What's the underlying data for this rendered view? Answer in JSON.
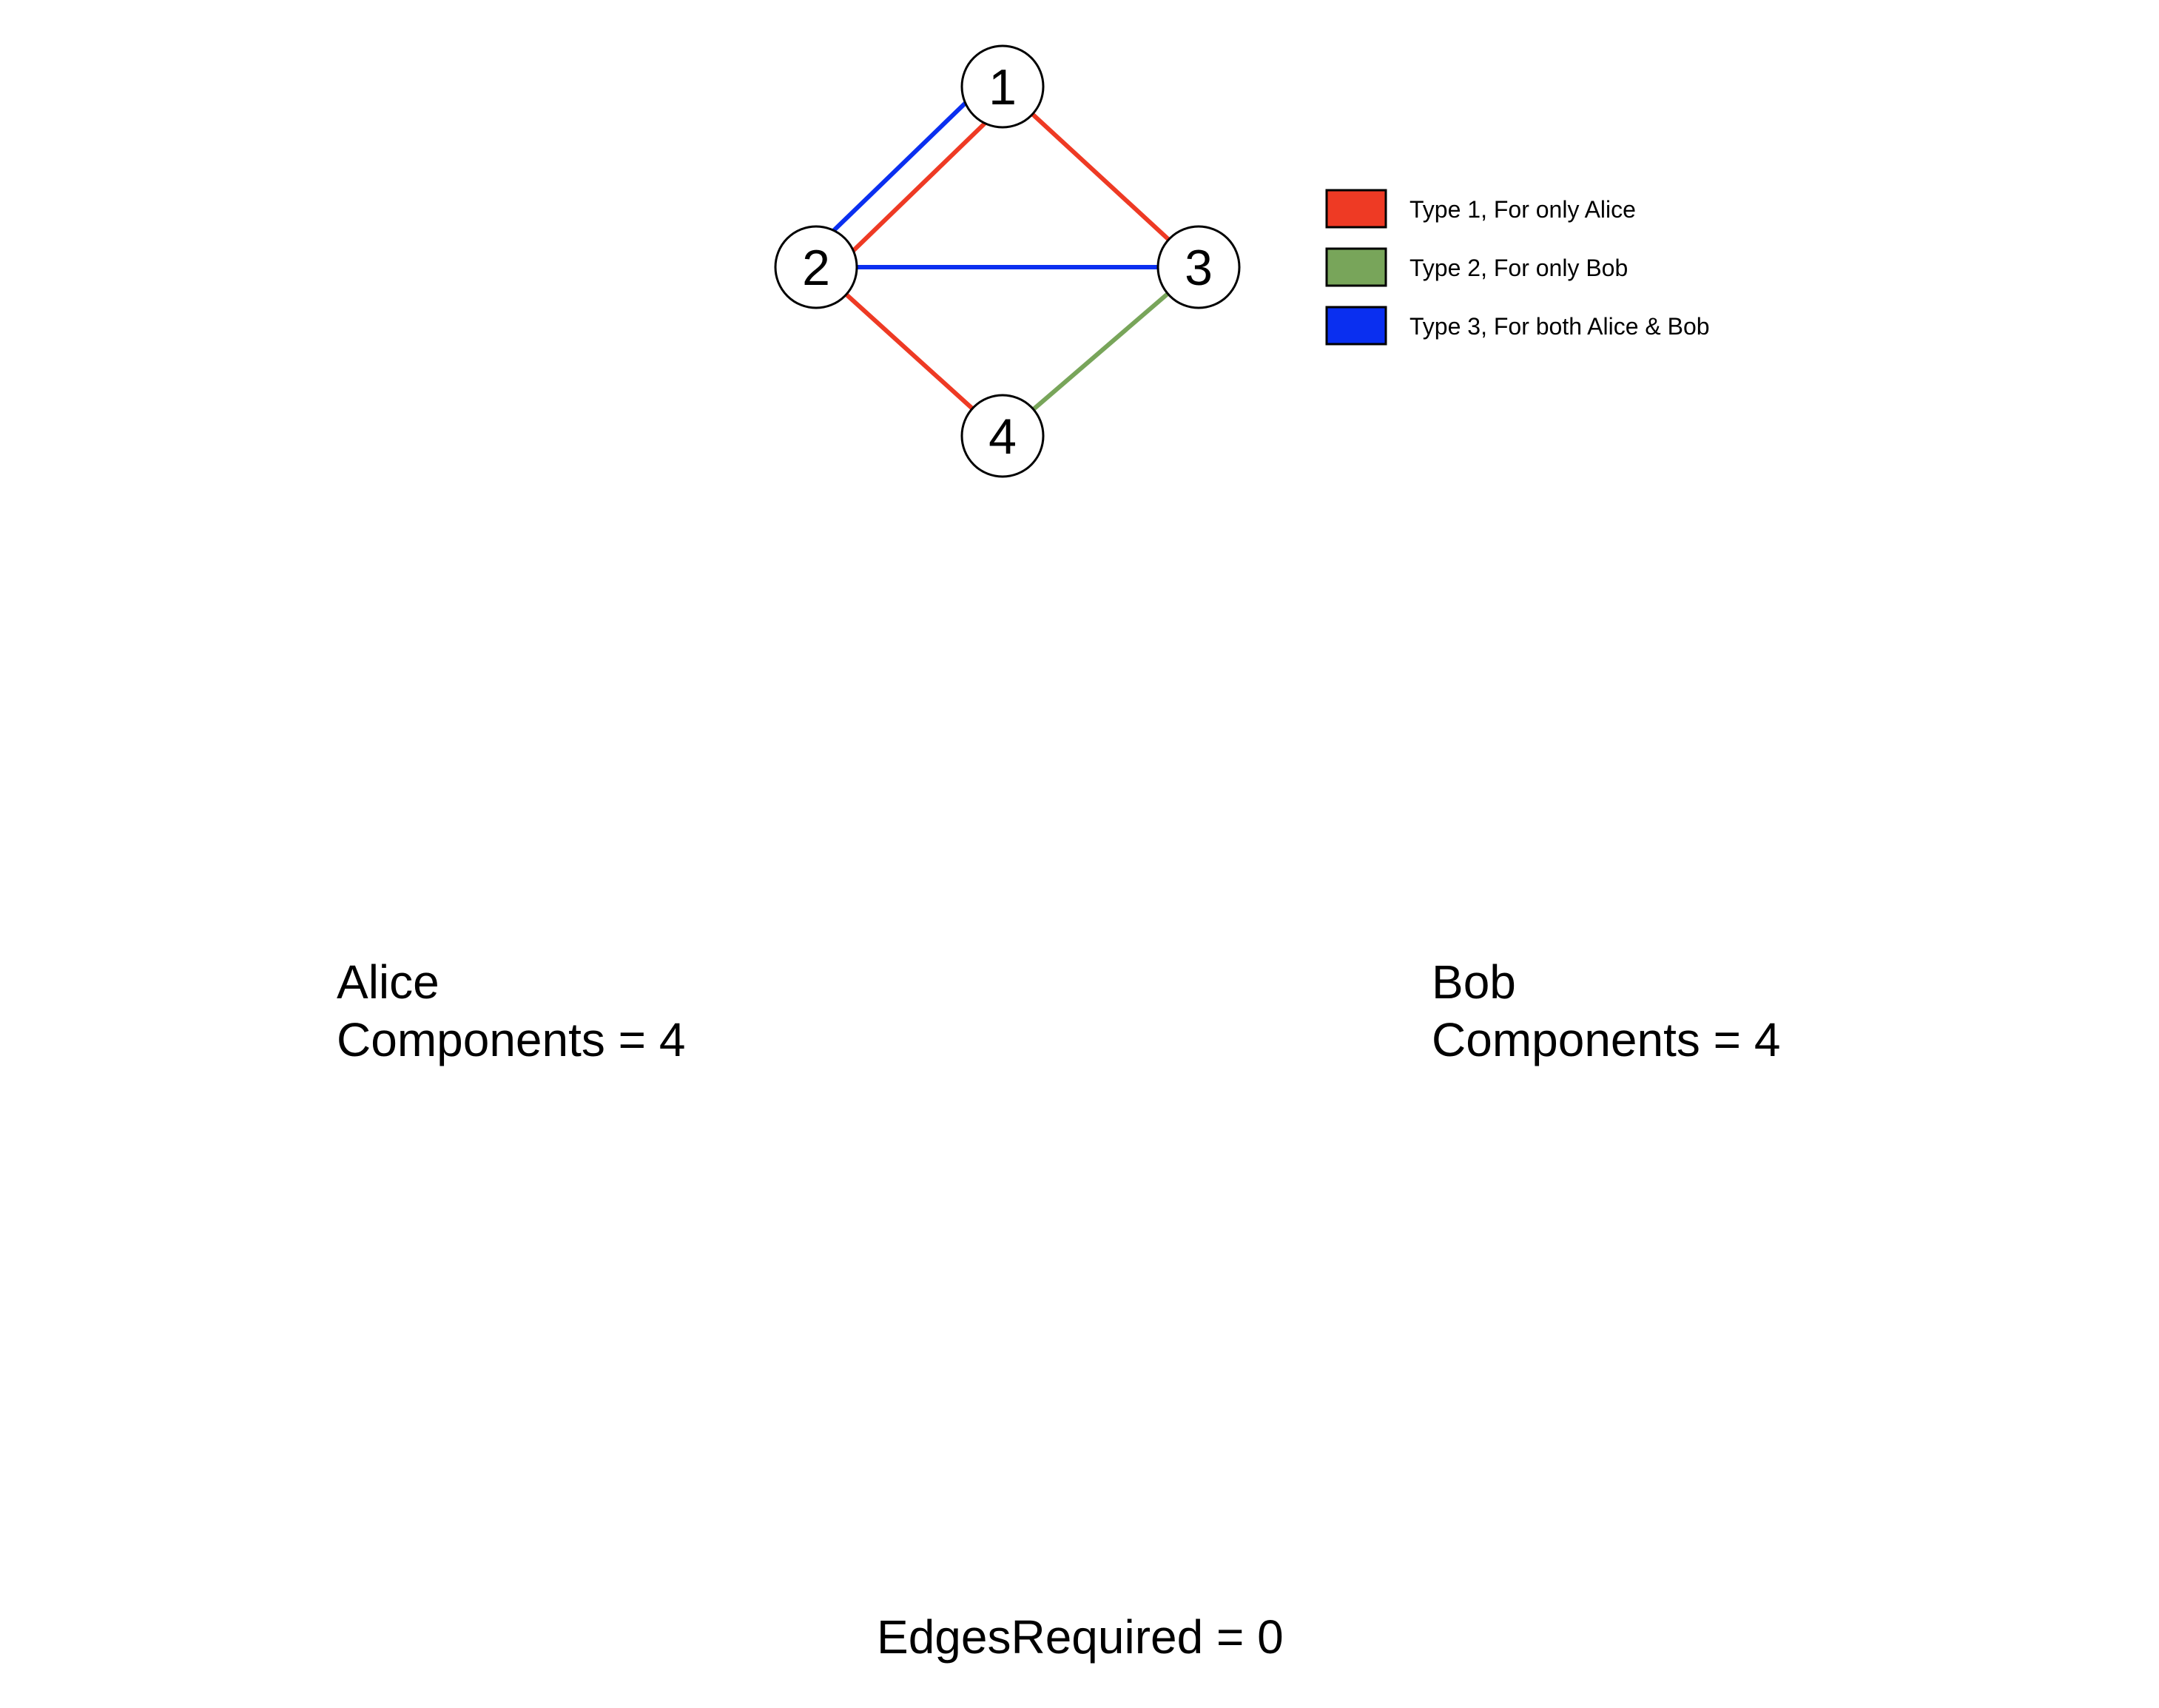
{
  "colors": {
    "type1": "#EE3A24",
    "type2": "#78A55A",
    "type3": "#0A2FF0"
  },
  "graph": {
    "nodes": [
      {
        "id": "1",
        "label": "1"
      },
      {
        "id": "2",
        "label": "2"
      },
      {
        "id": "3",
        "label": "3"
      },
      {
        "id": "4",
        "label": "4"
      }
    ],
    "edges": [
      {
        "from": "1",
        "to": "2",
        "type": 1
      },
      {
        "from": "1",
        "to": "2",
        "type": 3
      },
      {
        "from": "1",
        "to": "3",
        "type": 1
      },
      {
        "from": "2",
        "to": "3",
        "type": 3
      },
      {
        "from": "2",
        "to": "4",
        "type": 1
      },
      {
        "from": "3",
        "to": "4",
        "type": 2
      }
    ]
  },
  "legend": {
    "items": [
      {
        "label": "Type 1, For only Alice",
        "color": "#EE3A24"
      },
      {
        "label": "Type 2, For only Bob",
        "color": "#78A55A"
      },
      {
        "label": "Type 3, For both Alice & Bob",
        "color": "#0A2FF0"
      }
    ]
  },
  "alice": {
    "name": "Alice",
    "components": "Components = 4"
  },
  "bob": {
    "name": "Bob",
    "components": "Components = 4"
  },
  "footer": {
    "edges_required": "EdgesRequired = 0"
  }
}
